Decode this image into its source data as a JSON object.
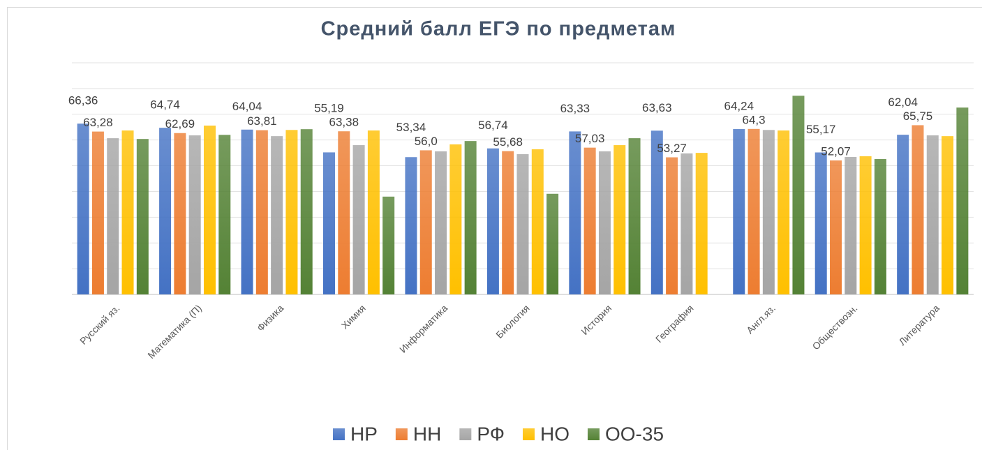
{
  "chart_data": {
    "type": "bar",
    "title": "Средний балл ЕГЭ по предметам",
    "categories": [
      "Русский яз.",
      "Математика (П)",
      "Физика",
      "Химия",
      "Информатика",
      "Биология",
      "История",
      "География",
      "Англ.яз.",
      "Обществозн.",
      "Литература"
    ],
    "series": [
      {
        "name": "НР",
        "color": "#4472c4",
        "values": [
          66.36,
          64.74,
          64.04,
          55.19,
          53.34,
          56.74,
          63.33,
          63.63,
          64.24,
          55.17,
          62.04
        ],
        "value_labels": [
          "66,36",
          "64,74",
          "64,04",
          "55,19",
          "53,34",
          "56,74",
          "63,33",
          "63,63",
          "64,24",
          "55,17",
          "62,04"
        ]
      },
      {
        "name": "НН",
        "color": "#ed7d31",
        "values": [
          63.28,
          62.69,
          63.81,
          63.38,
          56.0,
          55.68,
          57.03,
          53.27,
          64.3,
          52.07,
          65.75
        ],
        "value_labels": [
          "63,28",
          "62,69",
          "63,81",
          "63,38",
          "56,0",
          "55,68",
          "57,03",
          "53,27",
          "64,3",
          "52,07",
          "65,75"
        ]
      },
      {
        "name": "РФ",
        "color": "#a5a5a5",
        "values": [
          60.7,
          61.8,
          61.5,
          58.0,
          55.6,
          54.5,
          55.6,
          54.8,
          63.9,
          53.4,
          61.8
        ]
      },
      {
        "name": "НО",
        "color": "#ffc000",
        "values": [
          63.7,
          65.6,
          63.9,
          63.7,
          58.3,
          56.4,
          58.0,
          55.0,
          63.7,
          53.7,
          61.5
        ]
      },
      {
        "name": "ОО-35",
        "color": "#548235",
        "values": [
          60.4,
          62.0,
          64.2,
          38.0,
          59.6,
          39.1,
          60.7,
          null,
          77.2,
          52.6,
          72.6
        ]
      }
    ],
    "ylim": [
      0,
      90
    ],
    "yticks": [
      0,
      10,
      20,
      30,
      40,
      50,
      60,
      70,
      80,
      90
    ],
    "grid": true,
    "legend": "bottom"
  }
}
